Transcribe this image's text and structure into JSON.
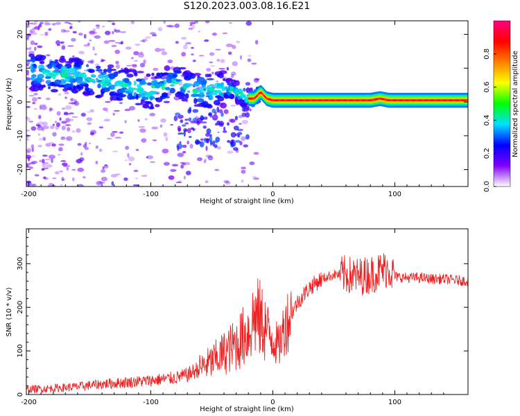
{
  "title": "S120.2023.003.08.16.E21",
  "chart_data": [
    {
      "type": "heatmap",
      "xlabel": "Height of straight line (km)",
      "ylabel": "Frequency (Hz)",
      "xlim": [
        -202,
        160
      ],
      "ylim": [
        -25,
        24
      ],
      "xticks": [
        -200,
        -100,
        0,
        100
      ],
      "yticks": [
        -20,
        -10,
        0,
        10,
        20
      ],
      "ridge": {
        "x": [
          -200,
          -180,
          -160,
          -140,
          -120,
          -100,
          -80,
          -60,
          -40,
          -30,
          -20,
          -15,
          -10,
          -5,
          0,
          20,
          40,
          60,
          80,
          88,
          95,
          100,
          120,
          140,
          160
        ],
        "y": [
          9,
          8,
          8,
          6,
          5,
          3,
          6,
          3,
          4,
          3,
          1,
          1,
          3,
          1,
          0.5,
          0.5,
          0.5,
          0.5,
          0.5,
          1,
          0.5,
          0.5,
          0.5,
          0.5,
          0.5
        ]
      },
      "colorbar": {
        "label": "Normalized spectral amplitude",
        "range": [
          0.0,
          1.0
        ],
        "ticks": [
          "0.0",
          "0.2",
          "0.4",
          "0.6",
          "0.8"
        ],
        "colormap": [
          "#ffffff",
          "#8000ff",
          "#0000ff",
          "#00e0ff",
          "#00ff00",
          "#ffff00",
          "#ff8000",
          "#ff0000",
          "#ff0080"
        ]
      },
      "grid": false
    },
    {
      "type": "line",
      "xlabel": "Height of straight line (km)",
      "ylabel": "SNR (10 * v/v)",
      "xlim": [
        -202,
        160
      ],
      "ylim": [
        0,
        380
      ],
      "xticks": [
        -200,
        -100,
        0,
        100
      ],
      "yticks": [
        0,
        100,
        200,
        300
      ],
      "series": [
        {
          "color": "#ee2222",
          "x": [
            -200,
            -180,
            -160,
            -140,
            -120,
            -100,
            -80,
            -70,
            -60,
            -50,
            -40,
            -30,
            -20,
            -15,
            -10,
            -5,
            0,
            5,
            10,
            20,
            30,
            40,
            50,
            60,
            70,
            80,
            90,
            95,
            100,
            110,
            120,
            130,
            140,
            150,
            160
          ],
          "y": [
            12,
            14,
            18,
            24,
            28,
            32,
            38,
            45,
            60,
            75,
            95,
            115,
            145,
            180,
            170,
            150,
            130,
            110,
            160,
            210,
            245,
            265,
            275,
            275,
            270,
            275,
            285,
            290,
            270,
            268,
            268,
            265,
            265,
            262,
            260
          ]
        }
      ],
      "grid": false
    }
  ]
}
